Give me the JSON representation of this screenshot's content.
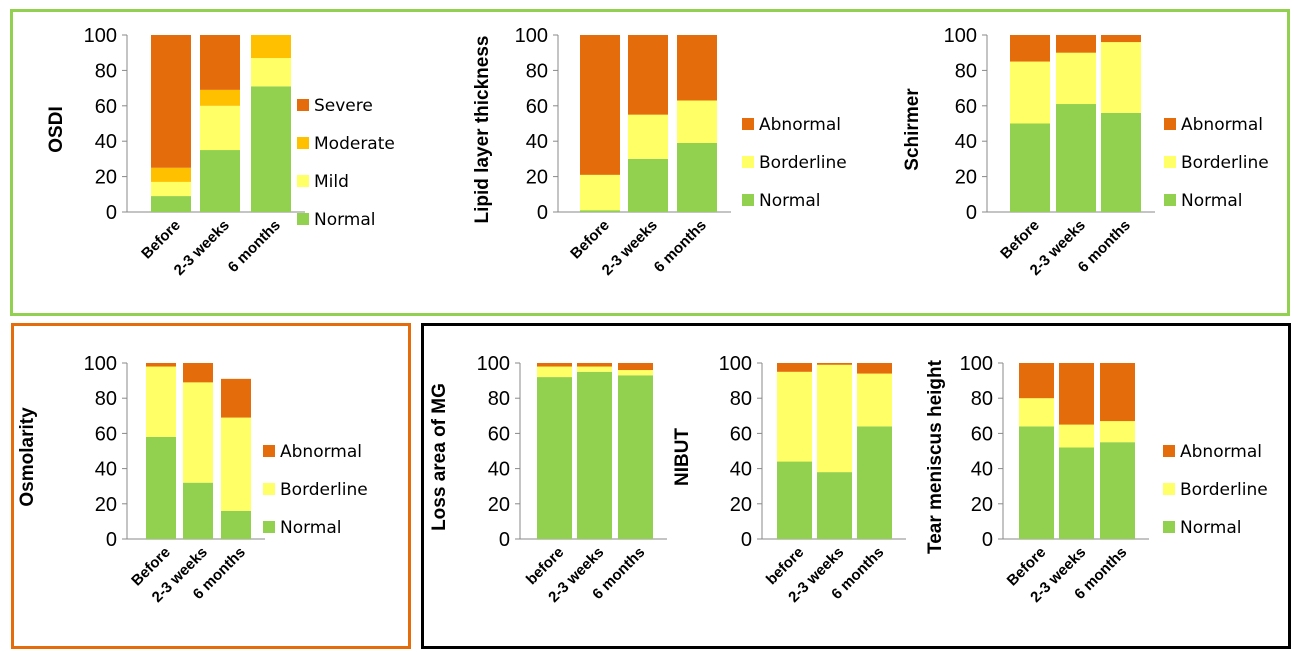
{
  "colors": {
    "Normal": "#92d050",
    "Mild": "#ffff66",
    "Borderline": "#ffff66",
    "Moderate": "#ffc000",
    "Severe": "#e46c0a",
    "Abnormal": "#e46c0a",
    "box_green": "#92d050",
    "box_orange": "#e46c0a",
    "box_black": "#000000"
  },
  "chart_data": [
    {
      "id": "osdi",
      "type": "bar",
      "stacked": true,
      "ylabel": "OSDI",
      "ylim": [
        0,
        100
      ],
      "yticks": [
        0,
        20,
        40,
        60,
        80,
        100
      ],
      "categories": [
        "Before",
        "2-3 weeks",
        "6 months"
      ],
      "series": [
        {
          "name": "Normal",
          "values": [
            9,
            35,
            71
          ]
        },
        {
          "name": "Mild",
          "values": [
            8,
            25,
            16
          ]
        },
        {
          "name": "Moderate",
          "values": [
            8,
            9,
            13
          ]
        },
        {
          "name": "Severe",
          "values": [
            75,
            31,
            0
          ]
        }
      ],
      "legend": [
        "Severe",
        "Moderate",
        "Mild",
        "Normal"
      ]
    },
    {
      "id": "lipid",
      "type": "bar",
      "stacked": true,
      "ylabel": "Lipid layer thickness",
      "ylim": [
        0,
        100
      ],
      "yticks": [
        0,
        20,
        40,
        60,
        80,
        100
      ],
      "categories": [
        "Before",
        "2-3 weeks",
        "6 months"
      ],
      "series": [
        {
          "name": "Normal",
          "values": [
            1,
            30,
            39
          ]
        },
        {
          "name": "Borderline",
          "values": [
            20,
            25,
            24
          ]
        },
        {
          "name": "Abnormal",
          "values": [
            79,
            45,
            37
          ]
        }
      ],
      "legend": [
        "Abnormal",
        "Borderline",
        "Normal"
      ]
    },
    {
      "id": "schirmer",
      "type": "bar",
      "stacked": true,
      "ylabel": "Schirmer",
      "ylim": [
        0,
        100
      ],
      "yticks": [
        0,
        20,
        40,
        60,
        80,
        100
      ],
      "categories": [
        "Before",
        "2-3 weeks",
        "6 months"
      ],
      "series": [
        {
          "name": "Normal",
          "values": [
            50,
            61,
            56
          ]
        },
        {
          "name": "Borderline",
          "values": [
            35,
            29,
            40
          ]
        },
        {
          "name": "Abnormal",
          "values": [
            15,
            10,
            4
          ]
        }
      ],
      "legend": [
        "Abnormal",
        "Borderline",
        "Normal"
      ]
    },
    {
      "id": "osmolarity",
      "type": "bar",
      "stacked": true,
      "ylabel": "Osmolarity",
      "ylim": [
        0,
        100
      ],
      "yticks": [
        0,
        20,
        40,
        60,
        80,
        100
      ],
      "categories": [
        "Before",
        "2-3 weeks",
        "6 months"
      ],
      "series": [
        {
          "name": "Normal",
          "values": [
            58,
            32,
            16
          ]
        },
        {
          "name": "Borderline",
          "values": [
            40,
            57,
            53
          ]
        },
        {
          "name": "Abnormal",
          "values": [
            2,
            11,
            22
          ]
        }
      ],
      "legend": [
        "Abnormal",
        "Borderline",
        "Normal"
      ]
    },
    {
      "id": "loss-area-mg",
      "type": "bar",
      "stacked": true,
      "ylabel": "Loss area of MG",
      "ylim": [
        0,
        100
      ],
      "yticks": [
        0,
        20,
        40,
        60,
        80,
        100
      ],
      "categories": [
        "before",
        "2-3 weeks",
        "6 months"
      ],
      "series": [
        {
          "name": "Normal",
          "values": [
            92,
            95,
            93
          ]
        },
        {
          "name": "Borderline",
          "values": [
            6,
            3,
            3
          ]
        },
        {
          "name": "Abnormal",
          "values": [
            2,
            2,
            4
          ]
        }
      ],
      "legend": []
    },
    {
      "id": "nibut",
      "type": "bar",
      "stacked": true,
      "ylabel": "NIBUT",
      "ylim": [
        0,
        100
      ],
      "yticks": [
        0,
        20,
        40,
        60,
        80,
        100
      ],
      "categories": [
        "before",
        "2-3 weeks",
        "6 months"
      ],
      "series": [
        {
          "name": "Normal",
          "values": [
            44,
            38,
            64
          ]
        },
        {
          "name": "Borderline",
          "values": [
            51,
            61,
            30
          ]
        },
        {
          "name": "Abnormal",
          "values": [
            5,
            1,
            6
          ]
        }
      ],
      "legend": []
    },
    {
      "id": "tear-meniscus",
      "type": "bar",
      "stacked": true,
      "ylabel": "Tear meniscus height",
      "ylim": [
        0,
        100
      ],
      "yticks": [
        0,
        20,
        40,
        60,
        80,
        100
      ],
      "categories": [
        "Before",
        "2-3 weeks",
        "6 months"
      ],
      "series": [
        {
          "name": "Normal",
          "values": [
            64,
            52,
            55
          ]
        },
        {
          "name": "Borderline",
          "values": [
            16,
            13,
            12
          ]
        },
        {
          "name": "Abnormal",
          "values": [
            20,
            35,
            33
          ]
        }
      ],
      "legend": [
        "Abnormal",
        "Borderline",
        "Normal"
      ]
    }
  ]
}
